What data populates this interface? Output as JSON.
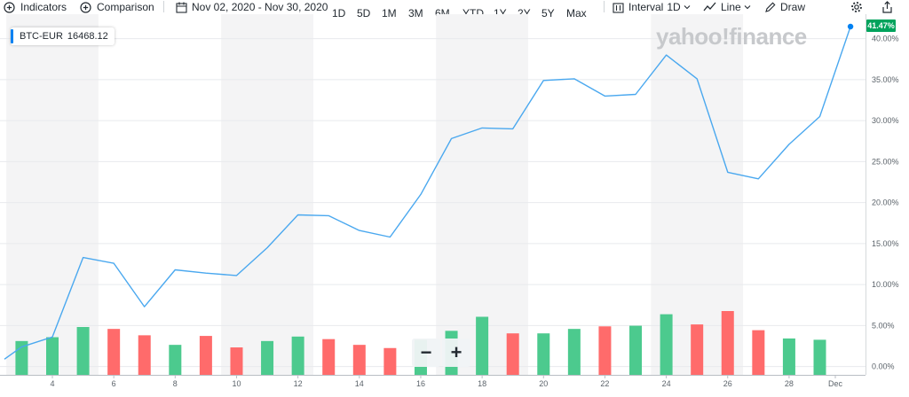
{
  "toolbar": {
    "indicators_label": "Indicators",
    "comparison_label": "Comparison",
    "date_range": "Nov 02, 2020 - Nov 30, 2020",
    "ranges": [
      "1D",
      "5D",
      "1M",
      "3M",
      "6M",
      "YTD",
      "1Y",
      "2Y",
      "5Y",
      "Max"
    ],
    "interval_label": "Interval",
    "interval_value": "1D",
    "chart_type_label": "Line",
    "draw_label": "Draw"
  },
  "legend": {
    "symbol": "BTC-EUR",
    "value": "16468.12",
    "color": "#0081f2"
  },
  "watermark": "yahoo!finance",
  "last_badge": "41.47%",
  "zoom": {
    "minus": "−",
    "plus": "+"
  },
  "colors": {
    "line": "#4aa8ef",
    "up": "#4cca8e",
    "down": "#ff6b6b",
    "badge": "#00a35c",
    "band": "#f4f4f5"
  },
  "chart_data": {
    "type": "line",
    "symbol": "BTC-EUR",
    "x_ticks": [
      "4",
      "6",
      "8",
      "10",
      "12",
      "14",
      "16",
      "18",
      "20",
      "22",
      "24",
      "26",
      "28",
      "Dec"
    ],
    "y_ticks": [
      "0.00%",
      "5.00%",
      "10.00%",
      "15.00%",
      "20.00%",
      "25.00%",
      "30.00%",
      "35.00%",
      "40.00%"
    ],
    "ylim": [
      -0.3,
      42.8
    ],
    "series": [
      {
        "days": [
          2,
          3,
          4,
          5,
          6,
          7,
          8,
          9,
          10,
          11,
          12,
          13,
          14,
          15,
          16,
          17,
          18,
          19,
          20,
          21,
          22,
          23,
          24,
          25,
          26,
          27,
          28,
          29,
          30
        ],
        "values": [
          0.9,
          2.4,
          3.6,
          13.3,
          12.6,
          7.3,
          11.8,
          11.4,
          11.1,
          14.5,
          18.5,
          18.4,
          16.6,
          15.8,
          21.0,
          27.8,
          29.1,
          29.0,
          34.9,
          35.1,
          33.0,
          33.2,
          38.0,
          35.1,
          23.7,
          22.9,
          27.1,
          30.5,
          41.47
        ]
      }
    ],
    "volume": {
      "days": [
        3,
        4,
        5,
        6,
        7,
        8,
        9,
        10,
        11,
        12,
        13,
        14,
        15,
        16,
        17,
        18,
        19,
        20,
        21,
        22,
        23,
        24,
        25,
        26,
        27,
        28,
        29
      ],
      "direction": [
        "up",
        "up",
        "up",
        "down",
        "down",
        "up",
        "down",
        "down",
        "up",
        "up",
        "down",
        "down",
        "down",
        "up",
        "up",
        "up",
        "down",
        "up",
        "up",
        "down",
        "up",
        "up",
        "down",
        "down",
        "down",
        "up",
        "up"
      ],
      "relative_height": [
        0.53,
        0.59,
        0.75,
        0.72,
        0.62,
        0.47,
        0.61,
        0.43,
        0.53,
        0.6,
        0.56,
        0.47,
        0.42,
        0.55,
        0.69,
        0.91,
        0.65,
        0.65,
        0.72,
        0.76,
        0.77,
        0.95,
        0.79,
        1.0,
        0.7,
        0.57,
        0.55
      ]
    }
  }
}
